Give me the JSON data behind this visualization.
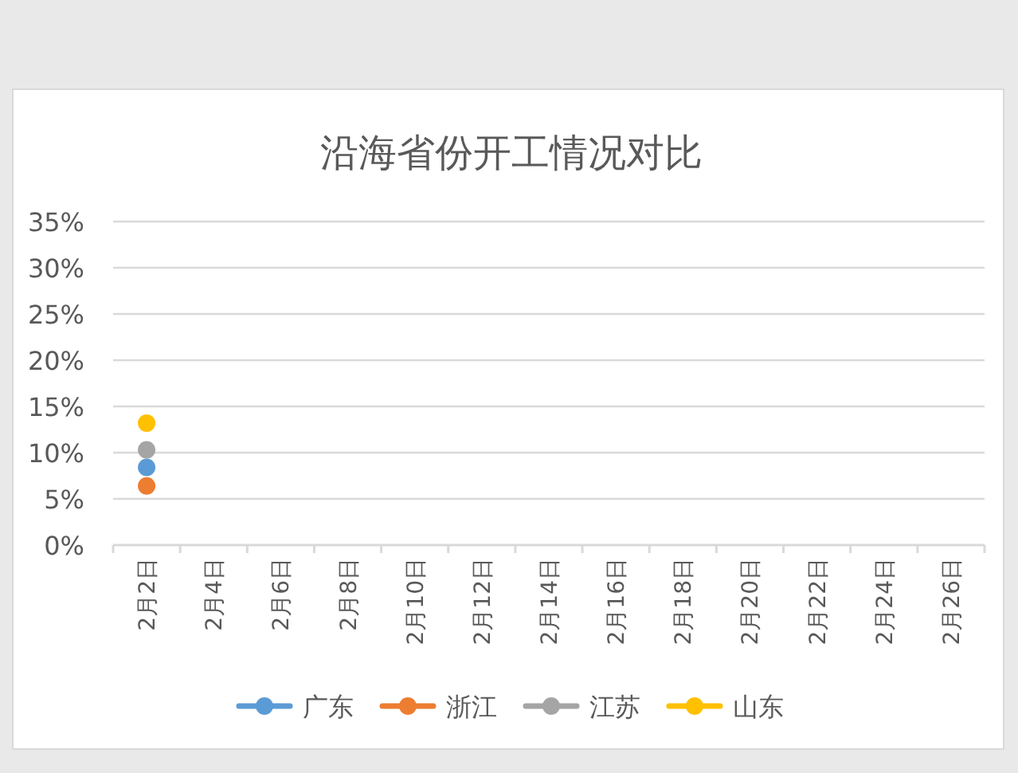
{
  "chart_data": {
    "type": "line",
    "title": "沿海省份开工情况对比",
    "categories": [
      "2月2日",
      "2月4日",
      "2月6日",
      "2月8日",
      "2月10日",
      "2月12日",
      "2月14日",
      "2月16日",
      "2月18日",
      "2月20日",
      "2月22日",
      "2月24日",
      "2月26日"
    ],
    "series": [
      {
        "name": "广东",
        "color": "#5b9bd5",
        "values": [
          8.4,
          null,
          null,
          null,
          null,
          null,
          null,
          null,
          null,
          null,
          null,
          null,
          null
        ]
      },
      {
        "name": "浙江",
        "color": "#ed7d31",
        "values": [
          6.4,
          null,
          null,
          null,
          null,
          null,
          null,
          null,
          null,
          null,
          null,
          null,
          null
        ]
      },
      {
        "name": "江苏",
        "color": "#a5a5a5",
        "values": [
          10.3,
          null,
          null,
          null,
          null,
          null,
          null,
          null,
          null,
          null,
          null,
          null,
          null
        ]
      },
      {
        "name": "山东",
        "color": "#ffc000",
        "values": [
          13.2,
          null,
          null,
          null,
          null,
          null,
          null,
          null,
          null,
          null,
          null,
          null,
          null
        ]
      }
    ],
    "ylim": [
      0,
      35
    ],
    "yticks": [
      {
        "value": 0,
        "label": "0%"
      },
      {
        "value": 5,
        "label": "5%"
      },
      {
        "value": 10,
        "label": "10%"
      },
      {
        "value": 15,
        "label": "15%"
      },
      {
        "value": 20,
        "label": "20%"
      },
      {
        "value": 25,
        "label": "25%"
      },
      {
        "value": 30,
        "label": "30%"
      },
      {
        "value": 35,
        "label": "35%"
      }
    ],
    "grid": "y",
    "legend": "bottom",
    "marker": "circle",
    "line_style": "solid"
  }
}
